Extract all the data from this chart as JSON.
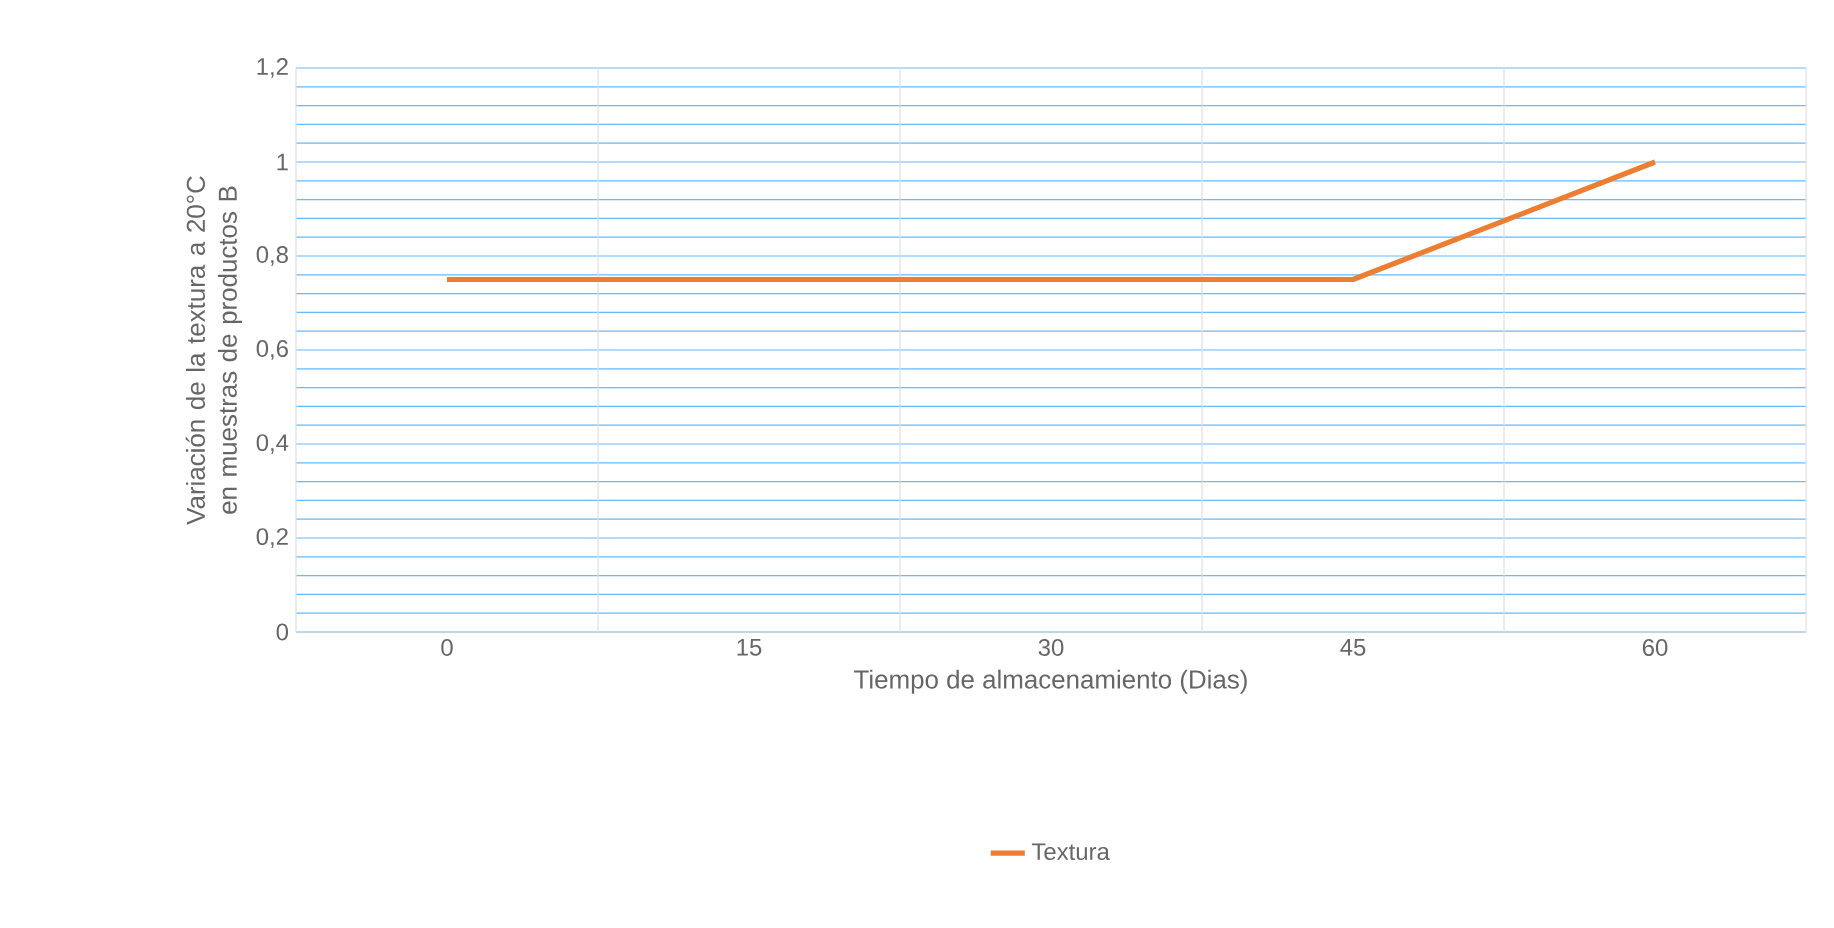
{
  "chart_data": {
    "type": "line",
    "xlabel": "Tiempo de almacenamiento (Dias)",
    "ylabel": "Variación de la textura a 20°C en muestras de productos B",
    "categories": [
      "0",
      "15",
      "30",
      "45",
      "60"
    ],
    "series": [
      {
        "name": "Textura",
        "color": "#ed7d31",
        "values": [
          0.75,
          0.75,
          0.75,
          0.75,
          1
        ]
      }
    ],
    "ylim": [
      0,
      1.2
    ],
    "yticks": [
      0,
      {
        "value": 0.04,
        "label": null
      },
      {
        "value": 0.08,
        "label": null
      },
      {
        "value": 0.12,
        "label": null
      },
      {
        "value": 0.16,
        "label": null
      },
      {
        "value": 0.2,
        "label": "0,2"
      },
      {
        "value": 0.24,
        "label": null
      },
      {
        "value": 0.28,
        "label": null
      },
      {
        "value": 0.32,
        "label": null
      },
      {
        "value": 0.36,
        "label": null
      },
      {
        "value": 0.4,
        "label": "0,4"
      },
      {
        "value": 0.44,
        "label": null
      },
      {
        "value": 0.48,
        "label": null
      },
      {
        "value": 0.52,
        "label": null
      },
      {
        "value": 0.56,
        "label": null
      },
      {
        "value": 0.6,
        "label": "0,6"
      },
      {
        "value": 0.64,
        "label": null
      },
      {
        "value": 0.68,
        "label": null
      },
      {
        "value": 0.72,
        "label": null
      },
      {
        "value": 0.76,
        "label": null
      },
      {
        "value": 0.8,
        "label": "0,8"
      },
      {
        "value": 0.84,
        "label": null
      },
      {
        "value": 0.88,
        "label": null
      },
      {
        "value": 0.92,
        "label": null
      },
      {
        "value": 0.96,
        "label": null
      },
      1,
      {
        "value": 1.04,
        "label": null
      },
      {
        "value": 1.08,
        "label": null
      },
      {
        "value": 1.12,
        "label": null
      },
      {
        "value": 1.16,
        "label": null
      },
      {
        "value": 1.2,
        "label": "1,2"
      }
    ],
    "grid": true,
    "legend": "bottom",
    "marker": "none",
    "line_style": "solid"
  }
}
